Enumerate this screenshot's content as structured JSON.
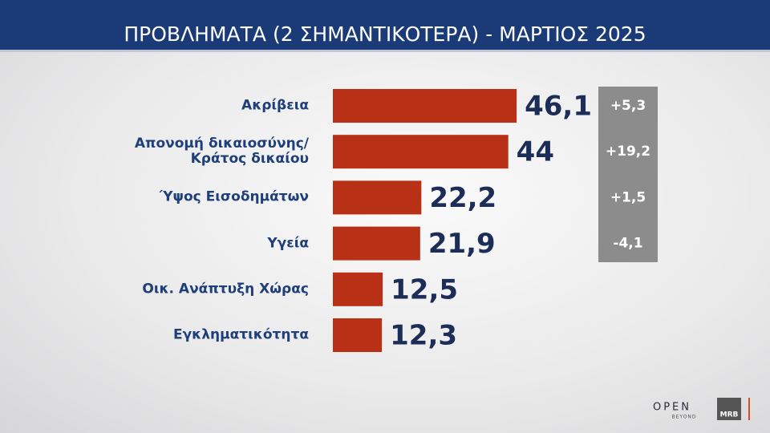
{
  "chart_data": {
    "type": "hbar",
    "title": "ΠΡΟΒΛΗΜΑΤΑ (2 ΣΗΜΑΝΤΙΚΟΤΕΡΑ) - ΜΑΡΤΙΟΣ 2025",
    "categories": [
      "Ακρίβεια",
      "Απονομή δικαιοσύνης/\nΚράτος δικαίου",
      "Ύψος Εισοδημάτων",
      "Υγεία",
      "Οικ. Ανάπτυξη Χώρας",
      "Εγκληματικότητα"
    ],
    "values": [
      46.1,
      44,
      22.2,
      21.9,
      12.5,
      12.3
    ],
    "value_labels": [
      "46,1",
      "44",
      "22,2",
      "21,9",
      "12,5",
      "12,3"
    ],
    "color": "#b83015",
    "changes": [
      5.3,
      19.2,
      1.5,
      -4.1
    ],
    "change_labels": [
      "+5,3",
      "+19,2",
      "+1,5",
      "-4,1"
    ],
    "logos": [
      "OPEN",
      "BEYOND",
      "MRB"
    ]
  }
}
